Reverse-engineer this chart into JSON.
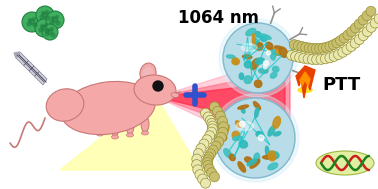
{
  "bg_color": "#ffffff",
  "title_text": "1064 nm",
  "ptt_text": "PTT",
  "fig_width": 3.78,
  "fig_height": 1.89,
  "dpi": 100,
  "mouse_body_color": "#f4a8a8",
  "mouse_outline_color": "#c87878",
  "laser_yellow": "#ffffa0",
  "laser_pink1": "#ff80a0",
  "laser_pink2": "#ff5070",
  "laser_pink3": "#ff2040",
  "nanoparticle_shell": "#b8dce8",
  "nanoparticle_inner_gold": "#c8901a",
  "nanoparticle_inner_cyan": "#30b8b8",
  "membrane_bead_color": "#c8c070",
  "membrane_bead_light": "#e8e8b0",
  "membrane_bead_outline": "#989030",
  "green_circles_color": "#40b060",
  "green_spot_color": "#208040",
  "flame_orange": "#e84000",
  "flame_yellow": "#ff9000",
  "dna_red": "#cc2020",
  "dna_green": "#208020",
  "dna_bg": "#e0f0a0",
  "plus_color": "#3050cc",
  "antibody_color": "#909090"
}
